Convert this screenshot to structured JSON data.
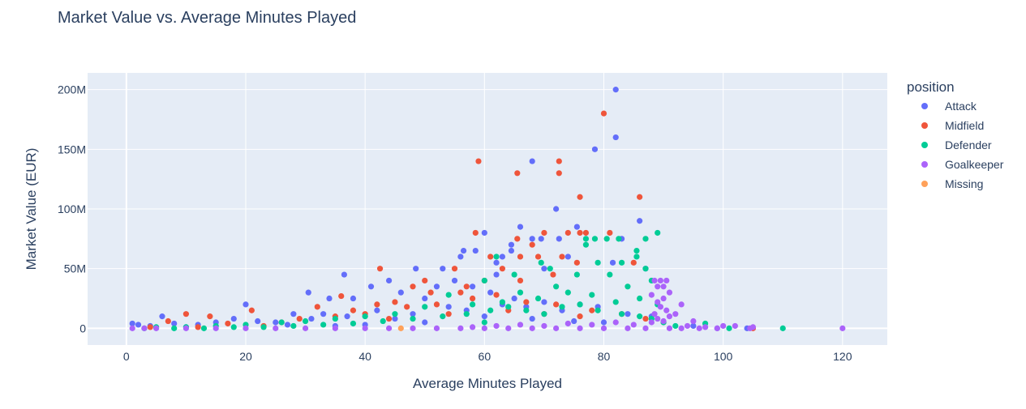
{
  "chart_data": {
    "type": "scatter",
    "title": "Market Value vs. Average Minutes Played",
    "xlabel": "Average Minutes Played",
    "ylabel": "Market Value (EUR)",
    "xlim": [
      -6.5,
      127.5
    ],
    "ylim": [
      -14000000,
      214000000
    ],
    "x_ticks": [
      0,
      20,
      40,
      60,
      80,
      100,
      120
    ],
    "x_tick_labels": [
      "0",
      "20",
      "40",
      "60",
      "80",
      "100",
      "120"
    ],
    "y_ticks": [
      0,
      50000000,
      100000000,
      150000000,
      200000000
    ],
    "y_tick_labels": [
      "0",
      "50M",
      "100M",
      "150M",
      "200M"
    ],
    "grid": true,
    "legend": {
      "title": "position",
      "placement": "right"
    },
    "series": [
      {
        "name": "Attack",
        "color": "#636efa",
        "points": [
          [
            82,
            200000000
          ],
          [
            82,
            160000000
          ],
          [
            78.5,
            150000000
          ],
          [
            68,
            140000000
          ],
          [
            72,
            100000000
          ],
          [
            86,
            90000000
          ],
          [
            66,
            85000000
          ],
          [
            75.5,
            85000000
          ],
          [
            60,
            80000000
          ],
          [
            83,
            75000000
          ],
          [
            68,
            75000000
          ],
          [
            69.5,
            75000000
          ],
          [
            72.5,
            75000000
          ],
          [
            64.5,
            70000000
          ],
          [
            56.5,
            65000000
          ],
          [
            58.5,
            65000000
          ],
          [
            64.5,
            65000000
          ],
          [
            63,
            60000000
          ],
          [
            74,
            60000000
          ],
          [
            81.5,
            55000000
          ],
          [
            56,
            60000000
          ],
          [
            62,
            55000000
          ],
          [
            48.5,
            50000000
          ],
          [
            53,
            50000000
          ],
          [
            70,
            50000000
          ],
          [
            87,
            50000000
          ],
          [
            36.5,
            45000000
          ],
          [
            41,
            35000000
          ],
          [
            44,
            40000000
          ],
          [
            55,
            40000000
          ],
          [
            30.5,
            30000000
          ],
          [
            20,
            20000000
          ],
          [
            38,
            25000000
          ],
          [
            34,
            25000000
          ],
          [
            46,
            30000000
          ],
          [
            50,
            25000000
          ],
          [
            52,
            35000000
          ],
          [
            58,
            35000000
          ],
          [
            61,
            30000000
          ],
          [
            65,
            25000000
          ],
          [
            28,
            12000000
          ],
          [
            31,
            8000000
          ],
          [
            33,
            12000000
          ],
          [
            37,
            10000000
          ],
          [
            42,
            15000000
          ],
          [
            25,
            5000000
          ],
          [
            18,
            8000000
          ],
          [
            22,
            6000000
          ],
          [
            6,
            10000000
          ],
          [
            8,
            4000000
          ],
          [
            12,
            3000000
          ],
          [
            15,
            5000000
          ],
          [
            1,
            4000000
          ],
          [
            2,
            3000000
          ],
          [
            4,
            2000000
          ],
          [
            10,
            1000000
          ],
          [
            27,
            3000000
          ],
          [
            45,
            8000000
          ],
          [
            48,
            12000000
          ],
          [
            54,
            18000000
          ],
          [
            57,
            15000000
          ],
          [
            63,
            20000000
          ],
          [
            67,
            18000000
          ],
          [
            70,
            22000000
          ],
          [
            73,
            15000000
          ],
          [
            76,
            20000000
          ],
          [
            79,
            18000000
          ],
          [
            84,
            12000000
          ],
          [
            88,
            10000000
          ],
          [
            99,
            0
          ],
          [
            104,
            0
          ],
          [
            95,
            2000000
          ],
          [
            50,
            5000000
          ],
          [
            40,
            3000000
          ],
          [
            35,
            2000000
          ],
          [
            60,
            10000000
          ],
          [
            68,
            8000000
          ],
          [
            75,
            6000000
          ],
          [
            80,
            5000000
          ],
          [
            62,
            45000000
          ]
        ]
      },
      {
        "name": "Midfield",
        "color": "#ef553b",
        "points": [
          [
            80,
            180000000
          ],
          [
            59,
            140000000
          ],
          [
            72.5,
            140000000
          ],
          [
            65.5,
            130000000
          ],
          [
            72.5,
            130000000
          ],
          [
            76,
            110000000
          ],
          [
            86,
            110000000
          ],
          [
            58.5,
            80000000
          ],
          [
            70,
            80000000
          ],
          [
            74,
            80000000
          ],
          [
            77,
            80000000
          ],
          [
            76,
            80000000
          ],
          [
            81,
            80000000
          ],
          [
            65.5,
            75000000
          ],
          [
            68,
            70000000
          ],
          [
            61,
            60000000
          ],
          [
            66,
            60000000
          ],
          [
            69,
            60000000
          ],
          [
            73,
            60000000
          ],
          [
            75.5,
            55000000
          ],
          [
            85,
            55000000
          ],
          [
            42.5,
            50000000
          ],
          [
            55,
            50000000
          ],
          [
            63,
            50000000
          ],
          [
            71.5,
            45000000
          ],
          [
            48,
            35000000
          ],
          [
            60,
            40000000
          ],
          [
            66,
            40000000
          ],
          [
            51,
            30000000
          ],
          [
            56,
            30000000
          ],
          [
            36,
            27000000
          ],
          [
            42,
            20000000
          ],
          [
            45,
            22000000
          ],
          [
            38,
            15000000
          ],
          [
            32,
            18000000
          ],
          [
            21,
            15000000
          ],
          [
            10,
            12000000
          ],
          [
            14,
            10000000
          ],
          [
            7,
            6000000
          ],
          [
            17,
            4000000
          ],
          [
            26,
            5000000
          ],
          [
            29,
            8000000
          ],
          [
            35,
            10000000
          ],
          [
            40,
            12000000
          ],
          [
            47,
            18000000
          ],
          [
            52,
            20000000
          ],
          [
            58,
            25000000
          ],
          [
            62,
            28000000
          ],
          [
            67,
            22000000
          ],
          [
            72,
            20000000
          ],
          [
            78,
            15000000
          ],
          [
            83,
            12000000
          ],
          [
            87,
            8000000
          ],
          [
            90,
            5000000
          ],
          [
            23,
            2000000
          ],
          [
            12,
            1000000
          ],
          [
            4,
            1000000
          ],
          [
            44,
            8000000
          ],
          [
            54,
            12000000
          ],
          [
            64,
            15000000
          ],
          [
            70,
            12000000
          ],
          [
            76,
            10000000
          ],
          [
            50,
            40000000
          ],
          [
            57,
            35000000
          ],
          [
            105,
            0
          ]
        ]
      },
      {
        "name": "Defender",
        "color": "#00cc96",
        "points": [
          [
            89,
            80000000
          ],
          [
            77,
            75000000
          ],
          [
            78.5,
            75000000
          ],
          [
            80.5,
            75000000
          ],
          [
            82.5,
            75000000
          ],
          [
            87,
            75000000
          ],
          [
            77,
            70000000
          ],
          [
            85.5,
            65000000
          ],
          [
            85.5,
            60000000
          ],
          [
            62,
            60000000
          ],
          [
            69.5,
            55000000
          ],
          [
            79,
            55000000
          ],
          [
            83,
            55000000
          ],
          [
            87,
            50000000
          ],
          [
            71,
            50000000
          ],
          [
            75.5,
            45000000
          ],
          [
            65,
            45000000
          ],
          [
            60,
            40000000
          ],
          [
            81,
            45000000
          ],
          [
            88,
            40000000
          ],
          [
            84,
            35000000
          ],
          [
            72,
            35000000
          ],
          [
            66,
            30000000
          ],
          [
            74,
            30000000
          ],
          [
            78,
            28000000
          ],
          [
            86,
            25000000
          ],
          [
            89,
            20000000
          ],
          [
            82,
            22000000
          ],
          [
            69,
            25000000
          ],
          [
            63,
            22000000
          ],
          [
            54,
            28000000
          ],
          [
            58,
            20000000
          ],
          [
            50,
            18000000
          ],
          [
            45,
            12000000
          ],
          [
            40,
            10000000
          ],
          [
            35,
            8000000
          ],
          [
            30,
            6000000
          ],
          [
            26,
            5000000
          ],
          [
            20,
            3000000
          ],
          [
            15,
            2000000
          ],
          [
            10,
            1000000
          ],
          [
            5,
            1000000
          ],
          [
            3,
            0
          ],
          [
            8,
            0
          ],
          [
            13,
            0
          ],
          [
            18,
            1000000
          ],
          [
            23,
            1000000
          ],
          [
            28,
            2000000
          ],
          [
            33,
            3000000
          ],
          [
            38,
            4000000
          ],
          [
            43,
            6000000
          ],
          [
            48,
            8000000
          ],
          [
            53,
            10000000
          ],
          [
            57,
            12000000
          ],
          [
            61,
            15000000
          ],
          [
            64,
            18000000
          ],
          [
            67,
            15000000
          ],
          [
            70,
            12000000
          ],
          [
            73,
            18000000
          ],
          [
            76,
            20000000
          ],
          [
            79,
            15000000
          ],
          [
            83,
            12000000
          ],
          [
            86,
            10000000
          ],
          [
            88,
            8000000
          ],
          [
            90,
            5000000
          ],
          [
            97,
            4000000
          ],
          [
            101,
            0
          ],
          [
            110,
            0
          ],
          [
            92,
            2000000
          ],
          [
            60,
            5000000
          ]
        ]
      },
      {
        "name": "Goalkeeper",
        "color": "#ab63fa",
        "points": [
          [
            89.5,
            40000000
          ],
          [
            88.5,
            40000000
          ],
          [
            90.5,
            40000000
          ],
          [
            89,
            35000000
          ],
          [
            90,
            35000000
          ],
          [
            91,
            30000000
          ],
          [
            88,
            28000000
          ],
          [
            90,
            25000000
          ],
          [
            89,
            22000000
          ],
          [
            93,
            20000000
          ],
          [
            89.5,
            18000000
          ],
          [
            90.5,
            15000000
          ],
          [
            88.5,
            12000000
          ],
          [
            92,
            12000000
          ],
          [
            91,
            10000000
          ],
          [
            89,
            8000000
          ],
          [
            90,
            6000000
          ],
          [
            88,
            5000000
          ],
          [
            95,
            6000000
          ],
          [
            94,
            2000000
          ],
          [
            97,
            1000000
          ],
          [
            100,
            2000000
          ],
          [
            102,
            2000000
          ],
          [
            105,
            1000000
          ],
          [
            120,
            0
          ],
          [
            104.5,
            0
          ],
          [
            99,
            0
          ],
          [
            96,
            0
          ],
          [
            93,
            0
          ],
          [
            91,
            0
          ],
          [
            87,
            0
          ],
          [
            84,
            0
          ],
          [
            80,
            0
          ],
          [
            76,
            0
          ],
          [
            72,
            0
          ],
          [
            68,
            0
          ],
          [
            64,
            0
          ],
          [
            60,
            0
          ],
          [
            56,
            0
          ],
          [
            52,
            0
          ],
          [
            48,
            0
          ],
          [
            44,
            0
          ],
          [
            40,
            0
          ],
          [
            35,
            0
          ],
          [
            30,
            0
          ],
          [
            25,
            0
          ],
          [
            20,
            0
          ],
          [
            15,
            0
          ],
          [
            10,
            0
          ],
          [
            5,
            0
          ],
          [
            1,
            0
          ],
          [
            3,
            0
          ],
          [
            85,
            3000000
          ],
          [
            82,
            5000000
          ],
          [
            78,
            3000000
          ],
          [
            74,
            4000000
          ],
          [
            70,
            2000000
          ],
          [
            66,
            3000000
          ],
          [
            62,
            2000000
          ],
          [
            58,
            1000000
          ]
        ]
      },
      {
        "name": "Missing",
        "color": "#ffa15a",
        "points": [
          [
            46,
            0
          ]
        ]
      }
    ]
  }
}
